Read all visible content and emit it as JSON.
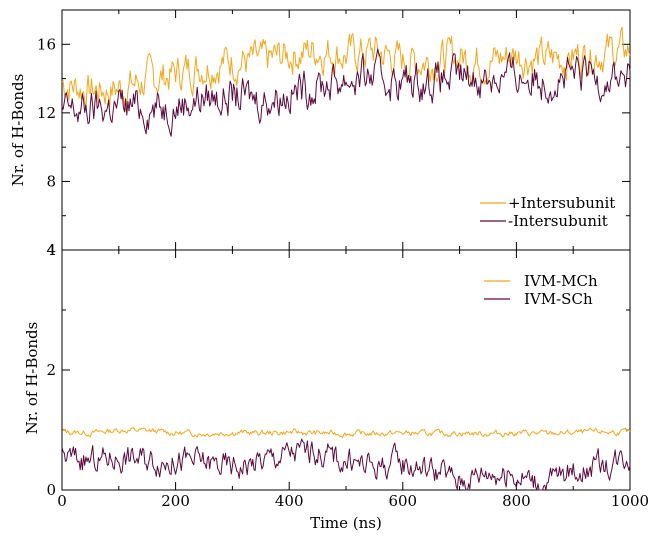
{
  "chart_data": [
    {
      "type": "line",
      "xlabel": "",
      "ylabel": "Nr. of H-Bonds",
      "xlim": [
        0,
        1000
      ],
      "ylim": [
        4,
        18
      ],
      "x_ticks": [
        0,
        200,
        400,
        600,
        800,
        1000
      ],
      "y_ticks": [
        4,
        8,
        12,
        16
      ],
      "legend_position": "center-right",
      "grid": false,
      "x": [
        0,
        50,
        100,
        150,
        200,
        250,
        300,
        350,
        400,
        450,
        500,
        550,
        600,
        650,
        700,
        750,
        800,
        850,
        900,
        950,
        1000
      ],
      "series": [
        {
          "name": "+Intersubunit",
          "color": "#f2a71c",
          "values": [
            13.8,
            13.3,
            13.4,
            13.9,
            14.3,
            14.8,
            15.1,
            14.9,
            15.4,
            15.7,
            15.4,
            15.6,
            15.0,
            15.1,
            15.3,
            15.0,
            15.4,
            15.1,
            15.3,
            15.6,
            15.6
          ]
        },
        {
          "name": "-Intersubunit",
          "color": "#5c0a3d",
          "values": [
            12.0,
            12.2,
            12.4,
            12.3,
            12.5,
            12.9,
            13.0,
            12.8,
            13.2,
            13.6,
            14.0,
            14.1,
            13.8,
            13.9,
            14.0,
            14.1,
            14.2,
            14.0,
            14.1,
            14.2,
            14.1
          ]
        }
      ]
    },
    {
      "type": "line",
      "xlabel": "Time (ns)",
      "ylabel": "Nr. of H-Bonds",
      "xlim": [
        0,
        1000
      ],
      "ylim": [
        0,
        4
      ],
      "x_ticks": [
        0,
        200,
        400,
        600,
        800,
        1000
      ],
      "y_ticks": [
        0,
        2,
        4
      ],
      "legend_position": "top-right",
      "grid": false,
      "x": [
        0,
        50,
        100,
        150,
        200,
        250,
        300,
        350,
        400,
        450,
        500,
        550,
        600,
        650,
        700,
        750,
        800,
        850,
        900,
        950,
        1000
      ],
      "series": [
        {
          "name": "IVM-MCh",
          "color": "#f2a71c",
          "values": [
            0.97,
            0.95,
            1.0,
            0.99,
            0.95,
            0.94,
            0.96,
            0.95,
            0.96,
            0.95,
            0.94,
            0.94,
            0.95,
            0.94,
            0.95,
            0.94,
            0.95,
            0.94,
            0.95,
            0.97,
            0.96
          ]
        },
        {
          "name": "IVM-SCh",
          "color": "#5c0a3d",
          "values": [
            0.55,
            0.48,
            0.55,
            0.52,
            0.5,
            0.45,
            0.38,
            0.48,
            0.62,
            0.65,
            0.48,
            0.4,
            0.45,
            0.35,
            0.15,
            0.32,
            0.25,
            0.12,
            0.35,
            0.4,
            0.6
          ]
        }
      ]
    }
  ]
}
